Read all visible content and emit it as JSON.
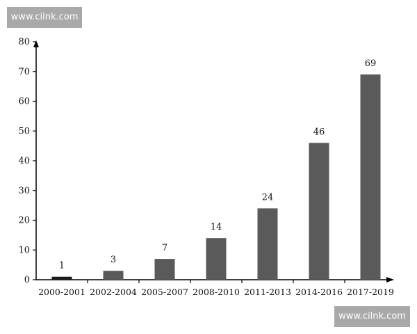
{
  "watermark_top": "www.cilnk.com",
  "watermark_bottom": "www.cilnk.com",
  "chart_data": {
    "type": "bar",
    "categories": [
      "2000-2001",
      "2002-2004",
      "2005-2007",
      "2008-2010",
      "2011-2013",
      "2014-2016",
      "2017-2019"
    ],
    "values": [
      1,
      3,
      7,
      14,
      24,
      46,
      69
    ],
    "title": "",
    "xlabel": "",
    "ylabel": "",
    "ylim": [
      0,
      80
    ],
    "yticks": [
      0,
      10,
      20,
      30,
      40,
      50,
      60,
      70,
      80
    ],
    "grid": false,
    "legend": "none",
    "colors": {
      "bar": "#5a5a5a",
      "first_bar": "#1a1a1a",
      "axis": "#000000"
    }
  }
}
